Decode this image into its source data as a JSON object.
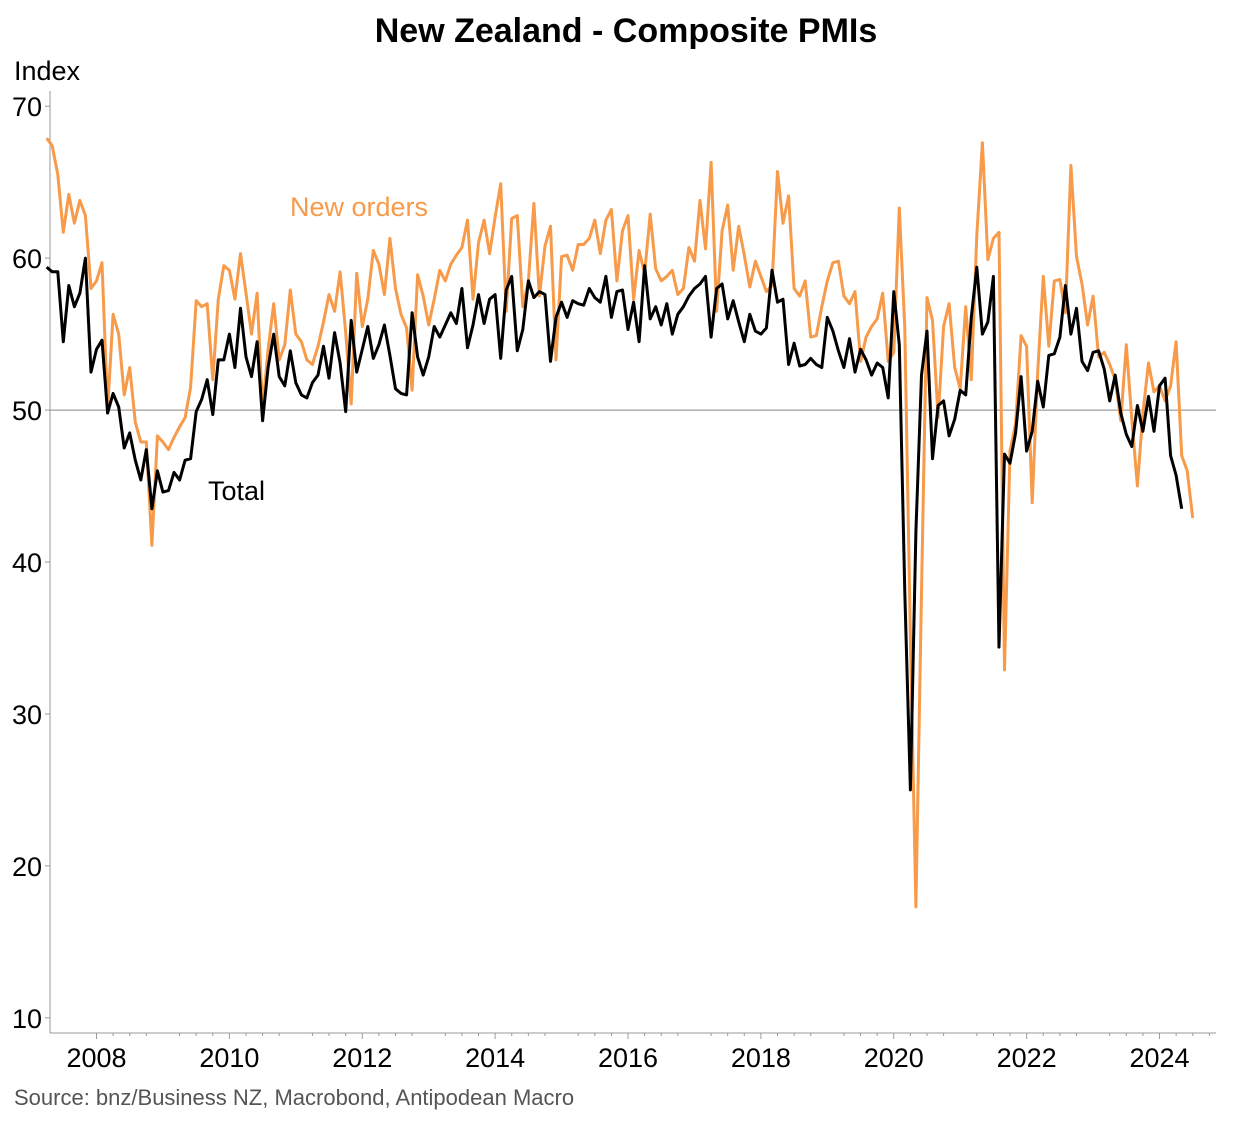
{
  "colors": {
    "new_orders": "#f79a4a",
    "total": "#000000",
    "reference_line": "#888888",
    "axis": "#999999"
  },
  "chart_data": {
    "type": "line",
    "title": "New Zealand - Composite PMIs",
    "ylabel": "Index",
    "ylim": [
      9,
      71
    ],
    "xlim": [
      2007.3,
      2024.85
    ],
    "yticks": [
      10,
      20,
      30,
      40,
      50,
      60,
      70
    ],
    "xticks": [
      2008,
      2010,
      2012,
      2014,
      2016,
      2018,
      2020,
      2022,
      2024
    ],
    "reference_line": 50,
    "grid": false,
    "source": "Source: bnz/Business NZ, Macrobond, Antipodean Macro",
    "series": [
      {
        "name": "New orders",
        "start": "2007-04",
        "frequency": "monthly",
        "values": [
          67.9,
          67.4,
          65.5,
          61.7,
          64.2,
          62.3,
          63.8,
          62.8,
          58.0,
          58.5,
          59.7,
          50.0,
          56.3,
          55.0,
          51.0,
          52.8,
          49.2,
          47.9,
          47.9,
          41.1,
          48.3,
          47.9,
          47.4,
          48.2,
          48.9,
          49.5,
          51.5,
          57.2,
          56.8,
          57.0,
          52.0,
          57.3,
          59.5,
          59.2,
          57.3,
          60.3,
          57.7,
          55.0,
          57.7,
          50.0,
          54.0,
          57.0,
          53.3,
          54.3,
          57.9,
          55.0,
          54.5,
          53.3,
          53.0,
          54.2,
          55.8,
          57.6,
          56.5,
          59.1,
          55.1,
          50.4,
          59.0,
          55.5,
          57.3,
          60.5,
          59.6,
          57.6,
          61.3,
          58.0,
          56.3,
          55.4,
          51.3,
          58.9,
          57.5,
          55.6,
          57.3,
          59.2,
          58.5,
          59.6,
          60.2,
          60.7,
          62.5,
          57.3,
          61.0,
          62.5,
          60.3,
          62.7,
          64.9,
          56.5,
          62.6,
          62.8,
          56.8,
          58.5,
          63.6,
          57.5,
          60.8,
          62.1,
          53.3,
          60.1,
          60.2,
          59.2,
          60.9,
          60.9,
          61.3,
          62.5,
          60.3,
          62.5,
          63.2,
          58.5,
          61.8,
          62.8,
          57.3,
          60.5,
          59.0,
          62.9,
          59.3,
          58.5,
          58.8,
          59.2,
          57.6,
          58.0,
          60.7,
          59.8,
          63.8,
          60.6,
          66.3,
          56.5,
          61.8,
          63.5,
          59.2,
          62.1,
          60.2,
          58.1,
          59.8,
          58.8,
          57.8,
          58.2,
          65.7,
          62.3,
          64.1,
          58.0,
          57.5,
          58.5,
          54.8,
          54.9,
          56.8,
          58.5,
          59.7,
          59.8,
          57.5,
          57.0,
          57.8,
          53.2,
          54.8,
          55.5,
          56.0,
          57.7,
          53.2,
          53.8,
          63.3,
          55.4,
          35.0,
          17.3,
          38.0,
          57.4,
          55.9,
          49.5,
          55.5,
          57.0,
          52.8,
          51.4,
          56.8,
          52.0,
          61.5,
          67.6,
          59.9,
          61.3,
          61.7,
          32.9,
          47.3,
          49.1,
          54.9,
          54.2,
          43.9,
          52.5,
          58.8,
          54.2,
          58.5,
          58.6,
          56.4,
          66.1,
          60.1,
          58.3,
          55.6,
          57.5,
          53.5,
          53.8,
          53.0,
          52.0,
          49.3,
          54.3,
          49.4,
          45.0,
          49.8,
          53.1,
          51.2,
          51.6,
          50.6,
          51.6,
          54.5,
          47.0,
          46.0,
          42.9
        ]
      },
      {
        "name": "Total",
        "start": "2007-04",
        "frequency": "monthly",
        "values": [
          59.4,
          59.1,
          59.1,
          54.5,
          58.2,
          56.8,
          57.7,
          60.0,
          52.5,
          54.0,
          54.6,
          49.8,
          51.1,
          50.2,
          47.5,
          48.5,
          46.7,
          45.4,
          47.4,
          43.5,
          46.0,
          44.6,
          44.7,
          45.9,
          45.4,
          46.7,
          46.8,
          49.9,
          50.7,
          52.0,
          49.7,
          53.3,
          53.3,
          55.0,
          52.8,
          56.7,
          53.5,
          52.2,
          54.5,
          49.3,
          52.8,
          55.0,
          52.2,
          51.6,
          53.9,
          51.8,
          51.0,
          50.8,
          51.8,
          52.3,
          54.2,
          52.1,
          55.1,
          53.1,
          49.9,
          55.9,
          52.5,
          54.0,
          55.5,
          53.4,
          54.3,
          55.6,
          53.6,
          51.4,
          51.1,
          51.0,
          56.4,
          53.5,
          52.3,
          53.5,
          55.5,
          54.8,
          55.6,
          56.4,
          55.7,
          58.0,
          54.1,
          55.6,
          57.6,
          55.7,
          57.3,
          57.6,
          53.4,
          57.9,
          58.8,
          53.9,
          55.3,
          58.5,
          57.4,
          57.8,
          57.6,
          53.2,
          56.1,
          57.1,
          56.1,
          57.2,
          57.0,
          56.9,
          58.0,
          57.4,
          57.1,
          58.8,
          56.1,
          57.8,
          57.9,
          55.3,
          57.1,
          54.5,
          59.5,
          56.0,
          56.8,
          55.6,
          57.0,
          55.0,
          56.3,
          56.8,
          57.5,
          58.0,
          58.3,
          58.8,
          54.8,
          58.0,
          58.3,
          56.0,
          57.2,
          55.8,
          54.5,
          56.3,
          55.2,
          55.0,
          55.4,
          59.2,
          57.1,
          57.3,
          53.0,
          54.4,
          52.9,
          53.0,
          53.4,
          53.0,
          52.8,
          56.1,
          55.2,
          53.9,
          52.8,
          54.7,
          52.5,
          54.0,
          53.3,
          52.3,
          53.1,
          52.8,
          50.8,
          57.8,
          54.3,
          38.0,
          25.0,
          42.0,
          52.3,
          55.2,
          46.8,
          50.3,
          50.6,
          48.3,
          49.4,
          51.3,
          51.0,
          56.1,
          59.4,
          55.0,
          55.8,
          58.8,
          34.4,
          47.1,
          46.5,
          48.5,
          52.2,
          47.3,
          48.6,
          51.9,
          50.2,
          53.6,
          53.7,
          54.8,
          58.2,
          55.0,
          56.7,
          53.2,
          52.6,
          53.8,
          53.9,
          52.7,
          50.6,
          52.3,
          49.8,
          48.4,
          47.6,
          50.3,
          48.6,
          50.9,
          48.6,
          51.6,
          52.1,
          47.0,
          45.7,
          43.5
        ]
      }
    ]
  }
}
